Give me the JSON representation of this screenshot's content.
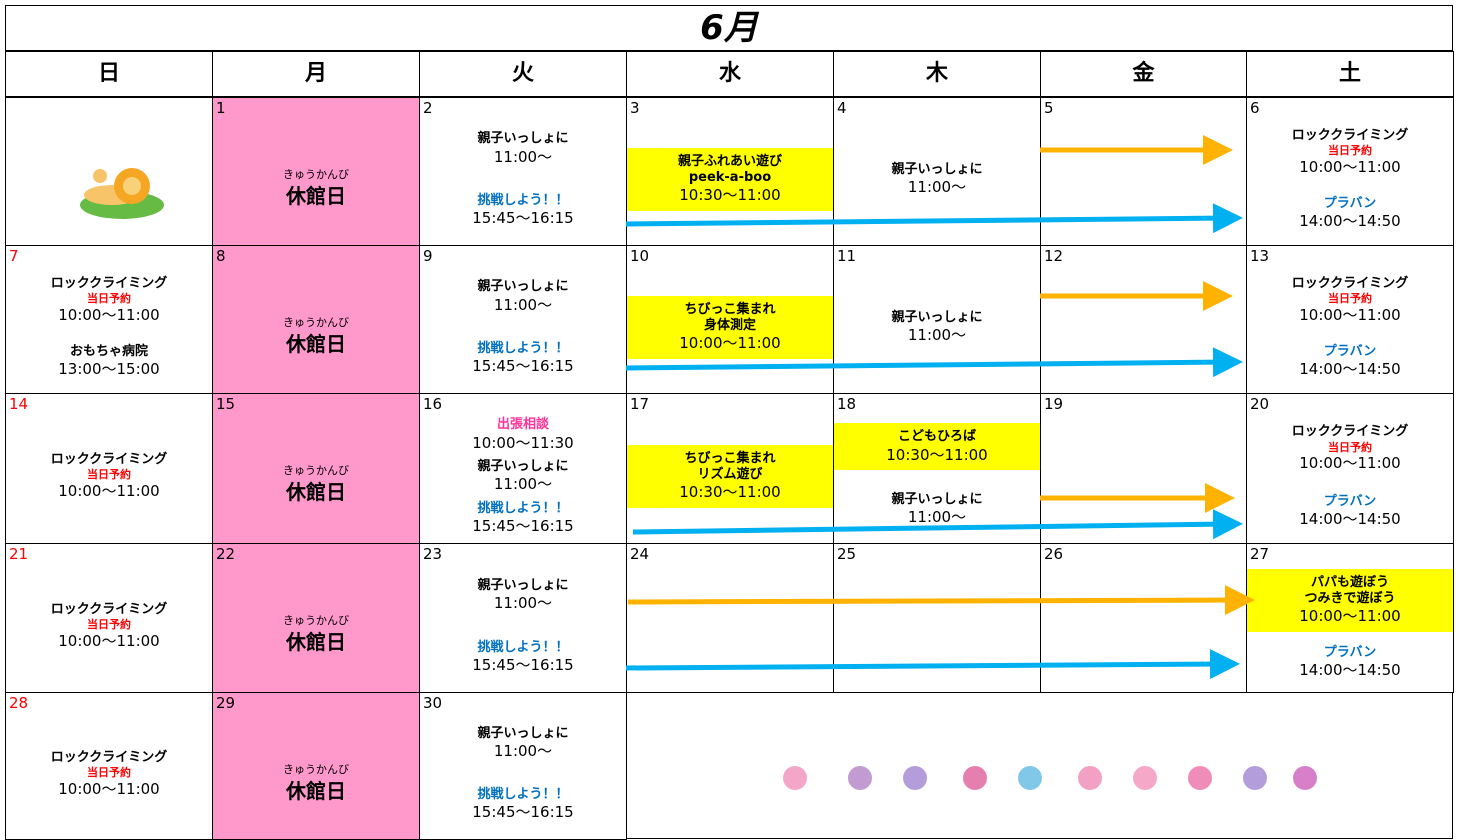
{
  "title": "6月",
  "weekdays": [
    "日",
    "月",
    "火",
    "水",
    "木",
    "金",
    "土"
  ],
  "sunday_date_color": "#ff0000",
  "closed_color": "#ff99cc",
  "note_color": "#ff0000",
  "days": [
    {
      "date": "1",
      "ruby": "きゅうかんび",
      "closed": "休館日"
    },
    {
      "date": "2",
      "events": [
        {
          "name": "親子いっしょに",
          "time": "11:00〜"
        },
        {
          "name": "挑戦しよう！！",
          "name_color": "#0070c0",
          "time": "15:45〜16:15"
        }
      ]
    },
    {
      "date": "3",
      "events": [
        {
          "name": "親子ふれあい遊び",
          "sub": "peek-a-boo",
          "time": "10:30〜11:00",
          "color": "#ffff00"
        }
      ]
    },
    {
      "date": "4",
      "events": [
        {
          "name": "親子いっしょに",
          "time": "11:00〜"
        }
      ]
    },
    {
      "date": "5"
    },
    {
      "date": "6",
      "events": [
        {
          "name": "ロッククライミング",
          "note": "当日予約",
          "time": "10:00〜11:00"
        },
        {
          "name": "プラバン",
          "name_color": "#0070c0",
          "time": "14:00〜14:50"
        }
      ]
    },
    {
      "date": "7",
      "events": [
        {
          "name": "ロッククライミング",
          "note": "当日予約",
          "time": "10:00〜11:00"
        },
        {
          "name": "おもちゃ病院",
          "time": "13:00〜15:00"
        }
      ]
    },
    {
      "date": "8",
      "ruby": "きゅうかんび",
      "closed": "休館日"
    },
    {
      "date": "9",
      "events": [
        {
          "name": "親子いっしょに",
          "time": "11:00〜"
        },
        {
          "name": "挑戦しよう！！",
          "name_color": "#0070c0",
          "time": "15:45〜16:15"
        }
      ]
    },
    {
      "date": "10",
      "events": [
        {
          "name": "ちびっこ集まれ",
          "sub": "身体測定",
          "time": "10:00〜11:00",
          "color": "#ffff00"
        }
      ]
    },
    {
      "date": "11",
      "events": [
        {
          "name": "親子いっしょに",
          "time": "11:00〜"
        }
      ]
    },
    {
      "date": "12"
    },
    {
      "date": "13",
      "events": [
        {
          "name": "ロッククライミング",
          "note": "当日予約",
          "time": "10:00〜11:00"
        },
        {
          "name": "プラバン",
          "name_color": "#0070c0",
          "time": "14:00〜14:50"
        }
      ]
    },
    {
      "date": "14",
      "events": [
        {
          "name": "ロッククライミング",
          "note": "当日予約",
          "time": "10:00〜11:00"
        }
      ]
    },
    {
      "date": "15",
      "ruby": "きゅうかんび",
      "closed": "休館日"
    },
    {
      "date": "16",
      "events": [
        {
          "name": "出張相談",
          "name_color": "#ff3399",
          "time": "10:00〜11:30"
        },
        {
          "name": "親子いっしょに",
          "time": "11:00〜"
        },
        {
          "name": "挑戦しよう！！",
          "name_color": "#0070c0",
          "time": "15:45〜16:15"
        }
      ]
    },
    {
      "date": "17",
      "events": [
        {
          "name": "ちびっこ集まれ",
          "sub": "リズム遊び",
          "time": "10:30〜11:00",
          "color": "#ffff00"
        }
      ]
    },
    {
      "date": "18",
      "events": [
        {
          "name": "こどもひろば",
          "time": "10:30〜11:00",
          "color": "#ffff00"
        },
        {
          "name": "親子いっしょに",
          "time": "11:00〜"
        }
      ]
    },
    {
      "date": "19"
    },
    {
      "date": "20",
      "events": [
        {
          "name": "ロッククライミング",
          "note": "当日予約",
          "time": "10:00〜11:00"
        },
        {
          "name": "プラバン",
          "name_color": "#0070c0",
          "time": "14:00〜14:50"
        }
      ]
    },
    {
      "date": "21",
      "events": [
        {
          "name": "ロッククライミング",
          "note": "当日予約",
          "time": "10:00〜11:00"
        }
      ]
    },
    {
      "date": "22",
      "ruby": "きゅうかんび",
      "closed": "休館日"
    },
    {
      "date": "23",
      "events": [
        {
          "name": "親子いっしょに",
          "time": "11:00〜"
        },
        {
          "name": "挑戦しよう！！",
          "name_color": "#0070c0",
          "time": "15:45〜16:15"
        }
      ]
    },
    {
      "date": "24"
    },
    {
      "date": "25"
    },
    {
      "date": "26"
    },
    {
      "date": "27",
      "events": [
        {
          "name": "パパも遊ぼう",
          "sub": "つみきで遊ぼう",
          "time": "10:00〜11:00",
          "color": "#ffff00"
        },
        {
          "name": "プラバン",
          "name_color": "#0070c0",
          "time": "14:00〜14:50"
        }
      ]
    },
    {
      "date": "28",
      "events": [
        {
          "name": "ロッククライミング",
          "note": "当日予約",
          "time": "10:00〜11:00"
        }
      ]
    },
    {
      "date": "29",
      "ruby": "きゅうかんび",
      "closed": "休館日"
    },
    {
      "date": "30",
      "events": [
        {
          "name": "親子いっしょに",
          "time": "11:00〜"
        },
        {
          "name": "挑戦しよう！！",
          "name_color": "#0070c0",
          "time": "15:45〜16:15"
        }
      ]
    }
  ]
}
